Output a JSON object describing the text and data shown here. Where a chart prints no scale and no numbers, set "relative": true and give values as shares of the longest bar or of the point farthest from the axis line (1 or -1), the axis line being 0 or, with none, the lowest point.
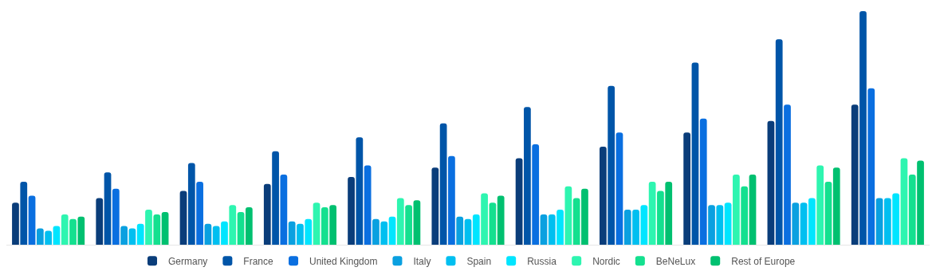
{
  "chart_data": {
    "type": "bar",
    "relative": true,
    "legend": "bottom",
    "categories": [
      null,
      null,
      null,
      null,
      null,
      null,
      null,
      null,
      null,
      null,
      null
    ],
    "series": [
      {
        "name": "Germany",
        "color": "#0a3d7a",
        "values": [
          0.18,
          0.2,
          0.23,
          0.26,
          0.29,
          0.33,
          0.37,
          0.42,
          0.48,
          0.53,
          0.6
        ]
      },
      {
        "name": "France",
        "color": "#0055a8",
        "values": [
          0.27,
          0.31,
          0.35,
          0.4,
          0.46,
          0.52,
          0.59,
          0.68,
          0.78,
          0.88,
          1
        ]
      },
      {
        "name": "United Kingdom",
        "color": "#0a6fe0",
        "values": [
          0.21,
          0.24,
          0.27,
          0.3,
          0.34,
          0.38,
          0.43,
          0.48,
          0.54,
          0.6,
          0.67
        ]
      },
      {
        "name": "Italy",
        "color": "#0aa0e0",
        "values": [
          0.07,
          0.08,
          0.09,
          0.1,
          0.11,
          0.12,
          0.13,
          0.15,
          0.17,
          0.18,
          0.2
        ]
      },
      {
        "name": "Spain",
        "color": "#00bff0",
        "values": [
          0.06,
          0.07,
          0.08,
          0.09,
          0.1,
          0.11,
          0.13,
          0.15,
          0.17,
          0.18,
          0.2
        ]
      },
      {
        "name": "Russia",
        "color": "#00e5ff",
        "values": [
          0.08,
          0.09,
          0.1,
          0.11,
          0.12,
          0.13,
          0.15,
          0.17,
          0.18,
          0.2,
          0.22
        ]
      },
      {
        "name": "Nordic",
        "color": "#2ef5b0",
        "values": [
          0.13,
          0.15,
          0.17,
          0.18,
          0.2,
          0.22,
          0.25,
          0.27,
          0.3,
          0.34,
          0.37
        ]
      },
      {
        "name": "BeNeLux",
        "color": "#14e08f",
        "values": [
          0.11,
          0.13,
          0.14,
          0.16,
          0.17,
          0.18,
          0.2,
          0.23,
          0.25,
          0.27,
          0.3
        ]
      },
      {
        "name": "Rest of Europe",
        "color": "#00c070",
        "values": [
          0.12,
          0.14,
          0.16,
          0.17,
          0.19,
          0.21,
          0.24,
          0.27,
          0.3,
          0.33,
          0.36
        ]
      }
    ]
  }
}
